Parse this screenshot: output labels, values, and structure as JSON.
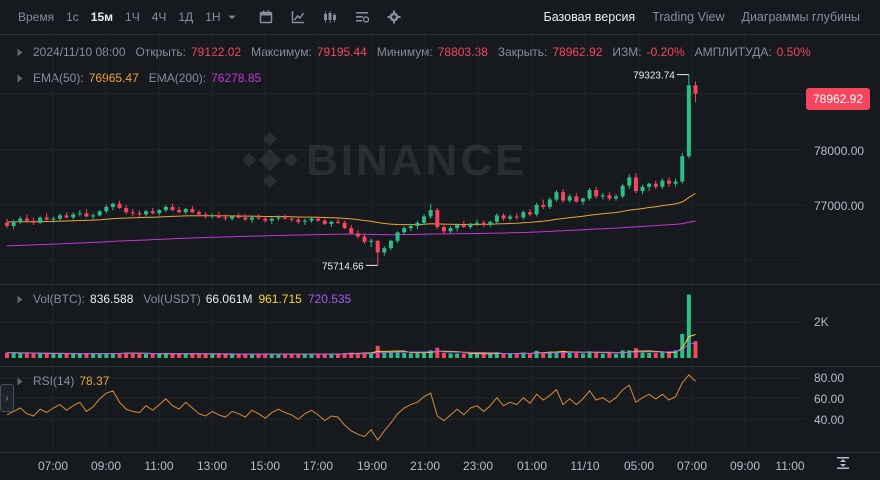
{
  "toolbar": {
    "time_label": "Время",
    "intervals": [
      {
        "label": "1с",
        "active": false
      },
      {
        "label": "15м",
        "active": true
      },
      {
        "label": "1Ч",
        "active": false
      },
      {
        "label": "4Ч",
        "active": false
      },
      {
        "label": "1Д",
        "active": false
      },
      {
        "label": "1Н",
        "active": false
      }
    ],
    "icons": [
      "chevron-down-icon",
      "calendar-icon",
      "indicator-chart-icon",
      "candlestick-icon",
      "list-settings-icon",
      "gear-icon"
    ],
    "views": [
      {
        "label": "Базовая версия",
        "active": true
      },
      {
        "label": "Trading View",
        "active": false
      },
      {
        "label": "Диаграммы глубины",
        "active": false
      }
    ]
  },
  "ohlc": {
    "date": "2024/11/10 08:00",
    "open_label": "Открыть:",
    "open": "79122.02",
    "high_label": "Максимум:",
    "high": "79195.44",
    "low_label": "Минимум:",
    "low": "78803.38",
    "close_label": "Закрыть:",
    "close": "78962.92",
    "change_label": "ИЗМ:",
    "change": "-0.20%",
    "amplitude_label": "АМПЛИТУДА:",
    "amplitude": "0.50%"
  },
  "ema": {
    "ema50_label": "EMA(50):",
    "ema50": "76965.47",
    "ema200_label": "EMA(200):",
    "ema200": "76278.85"
  },
  "volume": {
    "btc_label": "Vol(BTC):",
    "btc": "836.588",
    "usdt_label": "Vol(USDT)",
    "usdt": "66.061M",
    "ma1": "961.715",
    "ma2": "720.535",
    "axis_label": "2K"
  },
  "rsi": {
    "label": "RSI(14)",
    "value": "78.37",
    "axis": [
      "80.00",
      "60.00",
      "40.00"
    ]
  },
  "price_axis": [
    "78000.00",
    "77000.00"
  ],
  "current_price": "78962.92",
  "watermark": "BINANCE",
  "high_marker": "79323.74",
  "low_marker": "75714.66",
  "time_axis": [
    "07:00",
    "09:00",
    "11:00",
    "13:00",
    "15:00",
    "17:00",
    "19:00",
    "21:00",
    "23:00",
    "01:00",
    "11/10",
    "05:00",
    "07:00",
    "09:00",
    "11:00"
  ],
  "colors": {
    "up": "#2ebd85",
    "down": "#f6465d",
    "ema50": "#f0a13a",
    "ema200": "#c535d6",
    "rsi": "#d98a36"
  },
  "chart_data": {
    "type": "candlestick",
    "interval": "15м",
    "price_ylim": [
      75400,
      79600
    ],
    "rsi_ylim": [
      20,
      90
    ],
    "ohlc": [
      [
        76520,
        76600,
        76420,
        76460
      ],
      [
        76460,
        76580,
        76400,
        76540
      ],
      [
        76540,
        76640,
        76500,
        76600
      ],
      [
        76600,
        76680,
        76520,
        76560
      ],
      [
        76560,
        76620,
        76480,
        76520
      ],
      [
        76520,
        76640,
        76500,
        76620
      ],
      [
        76620,
        76700,
        76560,
        76580
      ],
      [
        76580,
        76640,
        76520,
        76600
      ],
      [
        76600,
        76700,
        76560,
        76660
      ],
      [
        76660,
        76720,
        76600,
        76620
      ],
      [
        76620,
        76720,
        76580,
        76680
      ],
      [
        76680,
        76760,
        76640,
        76700
      ],
      [
        76700,
        76780,
        76620,
        76640
      ],
      [
        76640,
        76700,
        76580,
        76660
      ],
      [
        76660,
        76760,
        76640,
        76740
      ],
      [
        76740,
        76860,
        76700,
        76820
      ],
      [
        76820,
        76900,
        76760,
        76880
      ],
      [
        76880,
        76940,
        76780,
        76800
      ],
      [
        76800,
        76860,
        76680,
        76720
      ],
      [
        76720,
        76780,
        76640,
        76700
      ],
      [
        76700,
        76760,
        76620,
        76680
      ],
      [
        76680,
        76760,
        76640,
        76740
      ],
      [
        76740,
        76800,
        76680,
        76700
      ],
      [
        76700,
        76780,
        76660,
        76760
      ],
      [
        76760,
        76860,
        76720,
        76820
      ],
      [
        76820,
        76880,
        76740,
        76760
      ],
      [
        76760,
        76820,
        76700,
        76720
      ],
      [
        76720,
        76800,
        76680,
        76780
      ],
      [
        76780,
        76840,
        76700,
        76720
      ],
      [
        76720,
        76760,
        76640,
        76680
      ],
      [
        76680,
        76720,
        76600,
        76640
      ],
      [
        76640,
        76700,
        76600,
        76660
      ],
      [
        76660,
        76720,
        76600,
        76620
      ],
      [
        76620,
        76680,
        76560,
        76600
      ],
      [
        76600,
        76660,
        76560,
        76640
      ],
      [
        76640,
        76700,
        76600,
        76620
      ],
      [
        76620,
        76680,
        76560,
        76580
      ],
      [
        76580,
        76640,
        76520,
        76620
      ],
      [
        76620,
        76680,
        76580,
        76600
      ],
      [
        76600,
        76640,
        76520,
        76560
      ],
      [
        76560,
        76620,
        76500,
        76600
      ],
      [
        76600,
        76660,
        76560,
        76620
      ],
      [
        76620,
        76680,
        76580,
        76600
      ],
      [
        76600,
        76640,
        76540,
        76580
      ],
      [
        76580,
        76620,
        76500,
        76540
      ],
      [
        76540,
        76600,
        76480,
        76560
      ],
      [
        76560,
        76620,
        76520,
        76600
      ],
      [
        76600,
        76640,
        76540,
        76560
      ],
      [
        76560,
        76600,
        76480,
        76500
      ],
      [
        76500,
        76560,
        76440,
        76540
      ],
      [
        76540,
        76600,
        76500,
        76520
      ],
      [
        76520,
        76560,
        76400,
        76420
      ],
      [
        76420,
        76480,
        76300,
        76320
      ],
      [
        76320,
        76380,
        76220,
        76260
      ],
      [
        76260,
        76300,
        76120,
        76160
      ],
      [
        76160,
        76220,
        76060,
        76180
      ],
      [
        76180,
        76200,
        75714.66,
        75960
      ],
      [
        75960,
        76080,
        75900,
        76040
      ],
      [
        76040,
        76200,
        76000,
        76180
      ],
      [
        76180,
        76360,
        76140,
        76340
      ],
      [
        76340,
        76460,
        76300,
        76420
      ],
      [
        76420,
        76500,
        76360,
        76460
      ],
      [
        76460,
        76560,
        76400,
        76520
      ],
      [
        76520,
        76680,
        76480,
        76640
      ],
      [
        76640,
        76880,
        76600,
        76760
      ],
      [
        76760,
        76800,
        76400,
        76440
      ],
      [
        76440,
        76480,
        76320,
        76360
      ],
      [
        76360,
        76460,
        76320,
        76420
      ],
      [
        76420,
        76500,
        76360,
        76480
      ],
      [
        76480,
        76560,
        76420,
        76440
      ],
      [
        76440,
        76520,
        76400,
        76500
      ],
      [
        76500,
        76580,
        76460,
        76520
      ],
      [
        76520,
        76560,
        76440,
        76480
      ],
      [
        76480,
        76560,
        76440,
        76540
      ],
      [
        76540,
        76700,
        76500,
        76660
      ],
      [
        76660,
        76700,
        76560,
        76600
      ],
      [
        76600,
        76680,
        76560,
        76640
      ],
      [
        76640,
        76700,
        76580,
        76620
      ],
      [
        76620,
        76760,
        76580,
        76720
      ],
      [
        76720,
        76780,
        76640,
        76680
      ],
      [
        76680,
        76900,
        76640,
        76860
      ],
      [
        76860,
        76960,
        76780,
        76820
      ],
      [
        76820,
        77000,
        76780,
        76960
      ],
      [
        76960,
        77140,
        76920,
        77100
      ],
      [
        77100,
        77160,
        76900,
        76940
      ],
      [
        76940,
        77060,
        76900,
        77020
      ],
      [
        77020,
        77080,
        76900,
        76920
      ],
      [
        76920,
        77000,
        76860,
        76980
      ],
      [
        76980,
        77180,
        76940,
        77140
      ],
      [
        77140,
        77200,
        76980,
        77020
      ],
      [
        77020,
        77080,
        76960,
        77040
      ],
      [
        77040,
        77100,
        76940,
        76980
      ],
      [
        76980,
        77060,
        76940,
        77020
      ],
      [
        77020,
        77260,
        76980,
        77220
      ],
      [
        77220,
        77440,
        77160,
        77380
      ],
      [
        77380,
        77460,
        77080,
        77120
      ],
      [
        77120,
        77240,
        77060,
        77200
      ],
      [
        77200,
        77280,
        77120,
        77260
      ],
      [
        77260,
        77320,
        77160,
        77200
      ],
      [
        77200,
        77360,
        77160,
        77320
      ],
      [
        77320,
        77380,
        77200,
        77260
      ],
      [
        77260,
        77360,
        77200,
        77300
      ],
      [
        77300,
        77840,
        77260,
        77780
      ],
      [
        77780,
        79323.74,
        77740,
        79122
      ],
      [
        79122.02,
        79195.44,
        78803.38,
        78962.92
      ]
    ],
    "volume_ylim": [
      0,
      2700
    ],
    "rsi": [
      49,
      52,
      55,
      50,
      48,
      54,
      51,
      55,
      58,
      53,
      57,
      60,
      52,
      56,
      63,
      68,
      70,
      60,
      54,
      52,
      51,
      57,
      53,
      58,
      63,
      57,
      54,
      60,
      55,
      50,
      48,
      52,
      49,
      47,
      52,
      50,
      47,
      53,
      50,
      46,
      51,
      54,
      51,
      49,
      45,
      50,
      53,
      49,
      44,
      48,
      47,
      40,
      35,
      32,
      30,
      36,
      27,
      35,
      42,
      50,
      55,
      58,
      60,
      65,
      68,
      48,
      44,
      49,
      54,
      49,
      55,
      57,
      52,
      57,
      64,
      57,
      60,
      58,
      64,
      59,
      67,
      62,
      66,
      71,
      58,
      63,
      58,
      63,
      70,
      62,
      64,
      60,
      64,
      71,
      75,
      60,
      64,
      67,
      63,
      67,
      62,
      65,
      77,
      84,
      78.37
    ]
  }
}
